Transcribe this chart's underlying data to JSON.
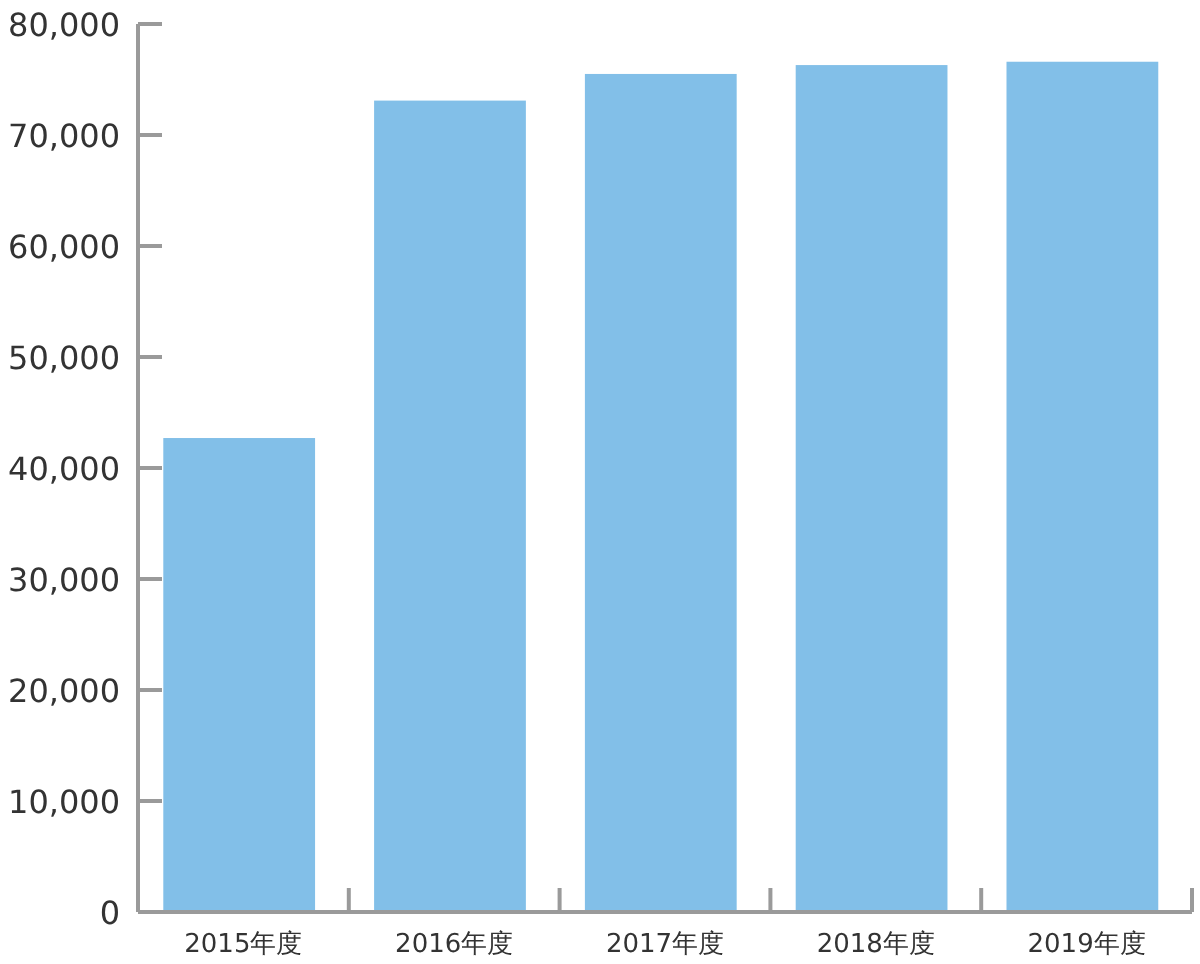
{
  "chart_data": {
    "type": "bar",
    "categories": [
      "2015年度",
      "2016年度",
      "2017年度",
      "2018年度",
      "2019年度"
    ],
    "values": [
      42700,
      73100,
      75500,
      76300,
      76600
    ],
    "color": "#82bfe8",
    "ylim": [
      0,
      80000
    ],
    "yticks": [
      {
        "value": 0,
        "label": "0"
      },
      {
        "value": 10000,
        "label": "10,000"
      },
      {
        "value": 20000,
        "label": "20,000"
      },
      {
        "value": 30000,
        "label": "30,000"
      },
      {
        "value": 40000,
        "label": "40,000"
      },
      {
        "value": 50000,
        "label": "50,000"
      },
      {
        "value": 60000,
        "label": "60,000"
      },
      {
        "value": 70000,
        "label": "70,000"
      },
      {
        "value": 80000,
        "label": "80,000"
      }
    ],
    "grid": false
  }
}
